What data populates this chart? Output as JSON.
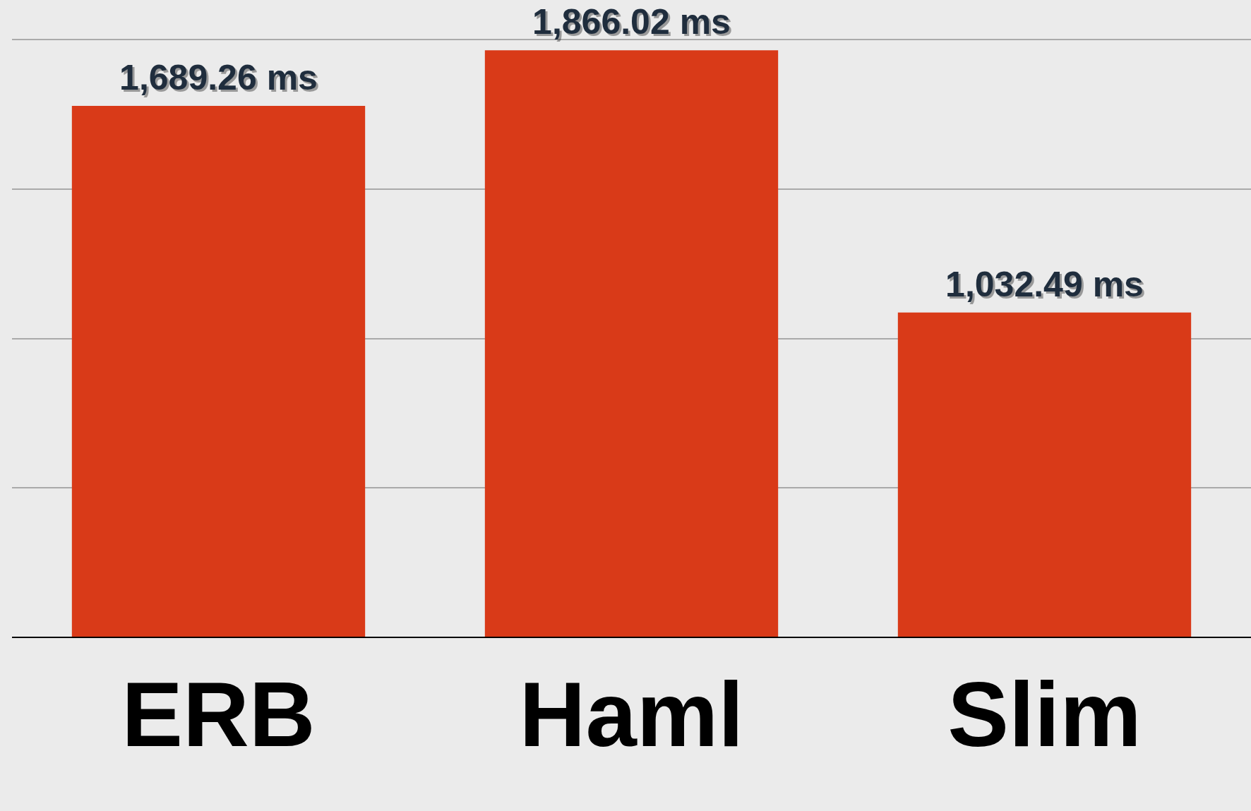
{
  "chart_data": {
    "type": "bar",
    "categories": [
      "ERB",
      "Haml",
      "Slim"
    ],
    "values": [
      1689.26,
      1866.02,
      1032.49
    ],
    "value_labels": [
      "1,689.26 ms",
      "1,866.02 ms",
      "1,032.49 ms"
    ],
    "color": "#d93a18",
    "ylim": [
      0,
      1900
    ],
    "yticks": [
      {
        "value": 0,
        "label": null
      },
      {
        "value": 475,
        "label": null
      },
      {
        "value": 950,
        "label": null
      },
      {
        "value": 1425,
        "label": null
      },
      {
        "value": 1900,
        "label": null
      }
    ],
    "grid": "y",
    "tick_labels": "x",
    "legend": false
  }
}
